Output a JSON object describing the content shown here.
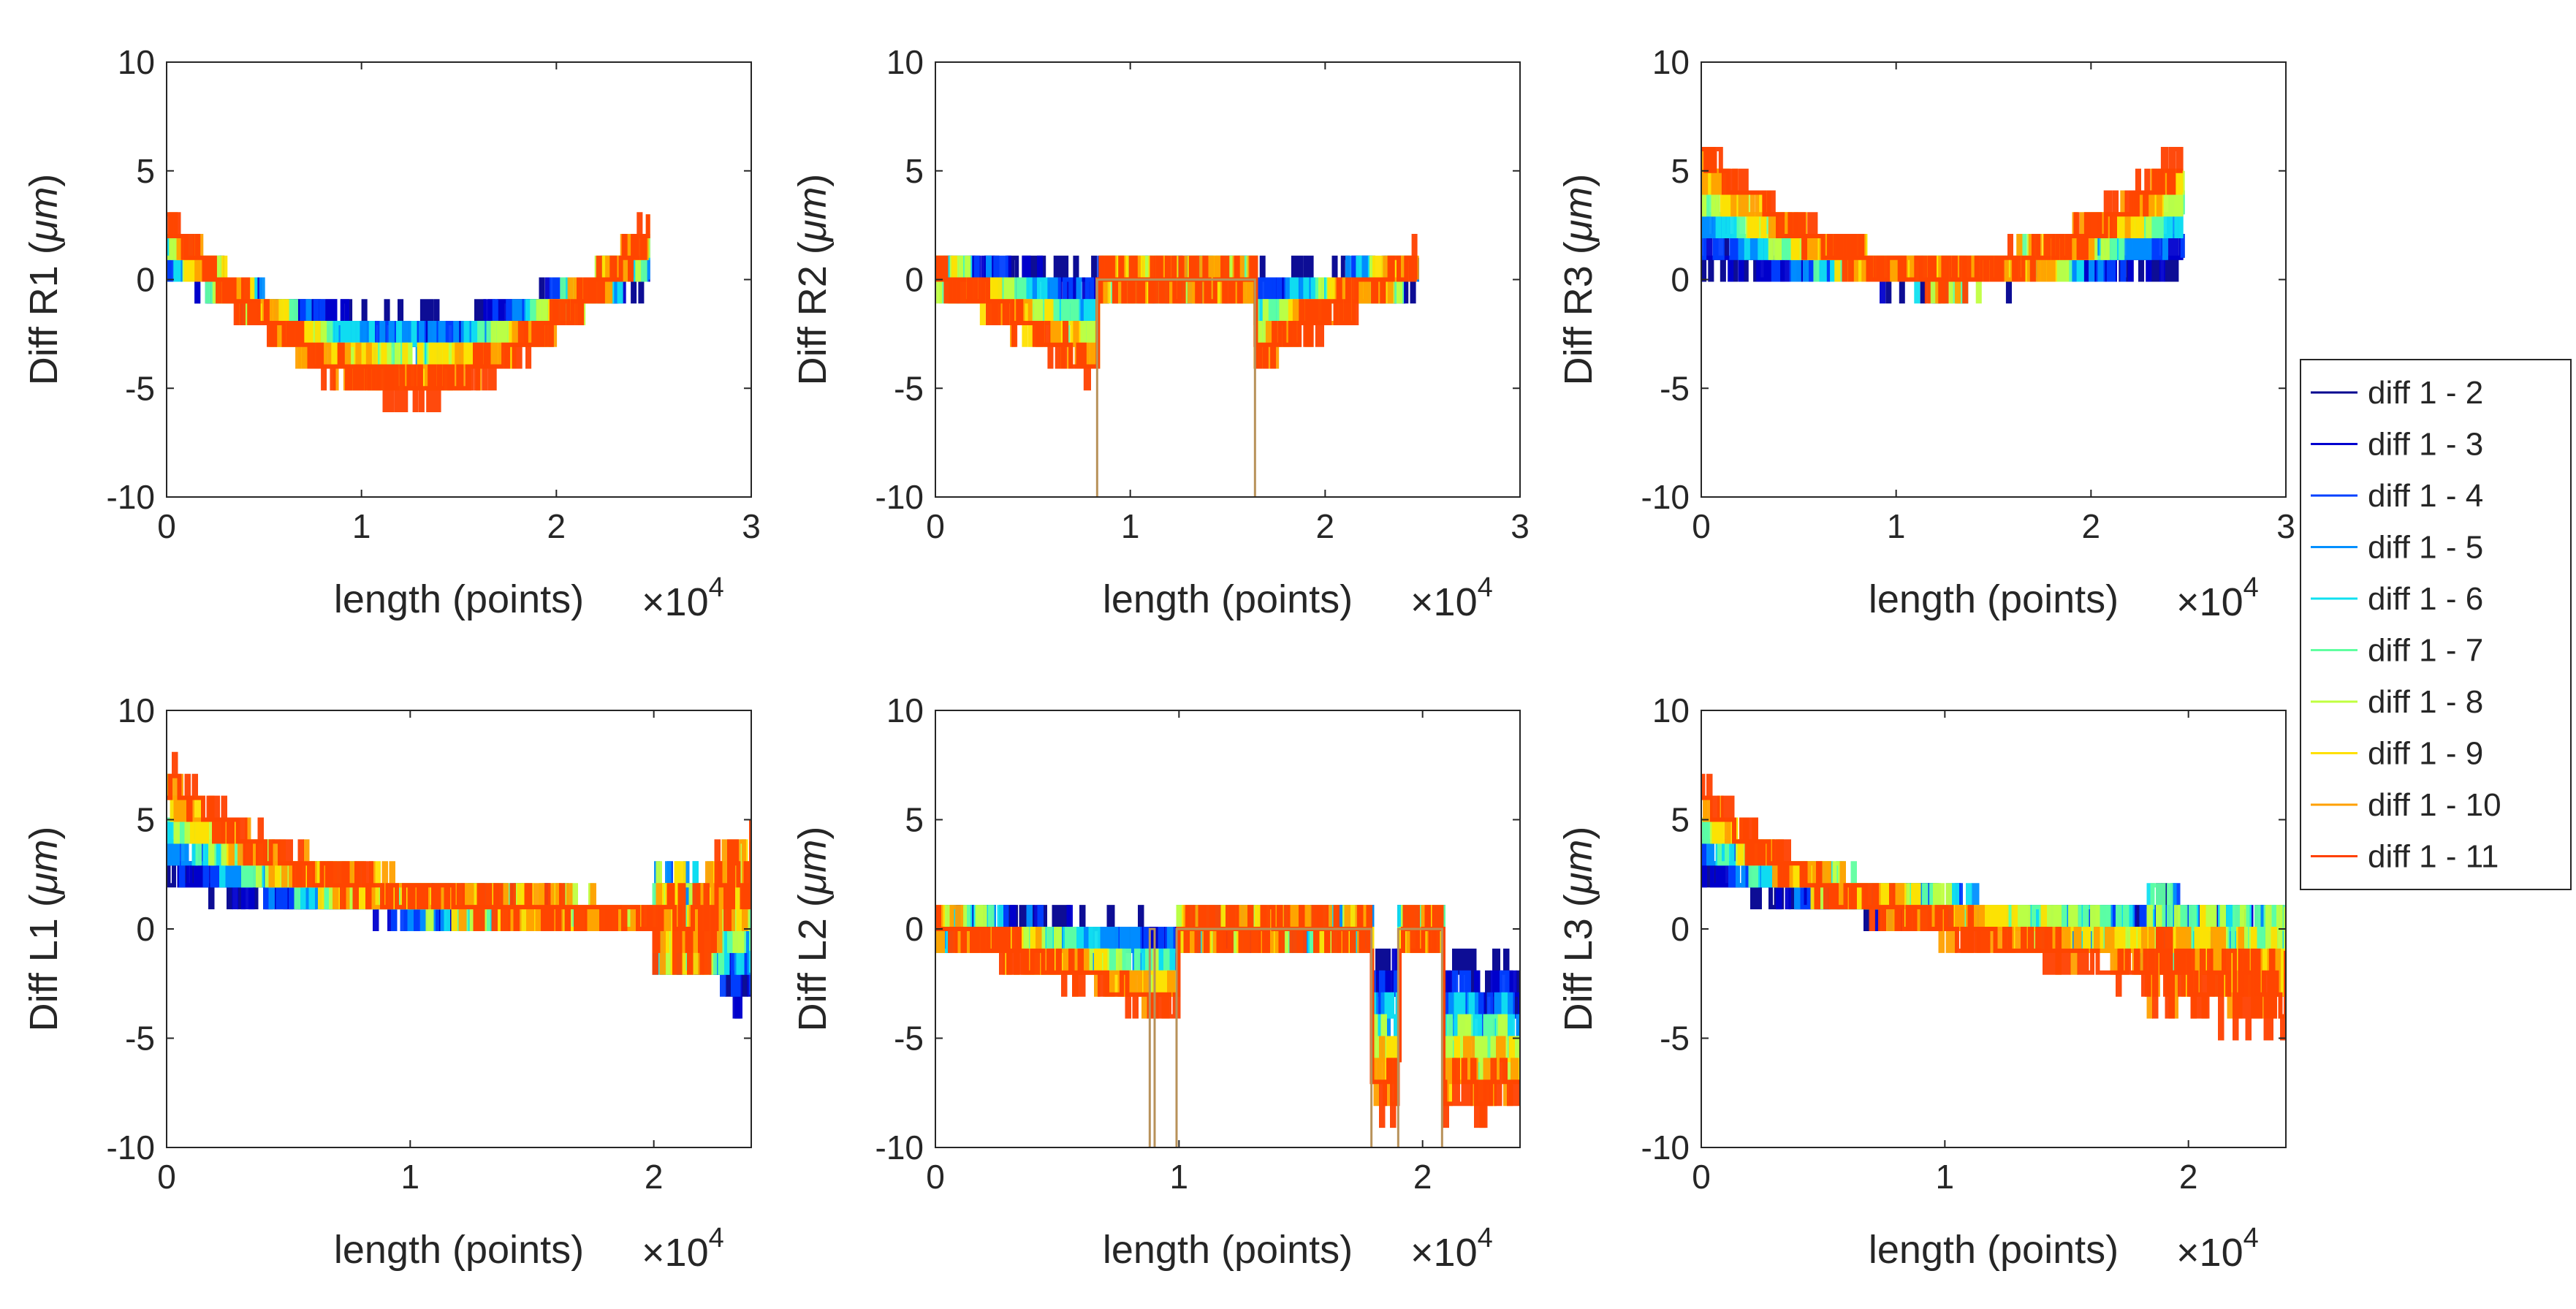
{
  "chart_data": [
    {
      "type": "line",
      "profile": "r1",
      "id": "R1",
      "ylabel": "Diff R1 (μm)",
      "ylabel_main": "Diff R1 (",
      "ylabel_unit": "μm",
      "ylabel_close": ")",
      "xlabel": "length (points)",
      "x_multiplier": "×10",
      "x_multiplier_exp": "4",
      "xlim": [
        0,
        3
      ],
      "ylim": [
        -10,
        10
      ],
      "data_extent": 2.47,
      "xticks": [
        "0",
        "1",
        "2",
        "3"
      ],
      "yticks": [
        "-10",
        "-5",
        "0",
        "5",
        "10"
      ]
    },
    {
      "type": "line",
      "profile": "r2",
      "id": "R2",
      "ylabel": "Diff R2 (μm)",
      "ylabel_main": "Diff R2 (",
      "ylabel_unit": "μm",
      "ylabel_close": ")",
      "xlabel": "length (points)",
      "x_multiplier": "×10",
      "x_multiplier_exp": "4",
      "xlim": [
        0,
        3
      ],
      "ylim": [
        -10,
        10
      ],
      "data_extent": 2.47,
      "xticks": [
        "0",
        "1",
        "2",
        "3"
      ],
      "yticks": [
        "-10",
        "-5",
        "0",
        "5",
        "10"
      ]
    },
    {
      "type": "line",
      "profile": "r3",
      "id": "R3",
      "ylabel": "Diff R3 (μm)",
      "ylabel_main": "Diff R3 (",
      "ylabel_unit": "μm",
      "ylabel_close": ")",
      "xlabel": "length (points)",
      "x_multiplier": "×10",
      "x_multiplier_exp": "4",
      "xlim": [
        0,
        3
      ],
      "ylim": [
        -10,
        10
      ],
      "data_extent": 2.47,
      "xticks": [
        "0",
        "1",
        "2",
        "3"
      ],
      "yticks": [
        "-10",
        "-5",
        "0",
        "5",
        "10"
      ]
    },
    {
      "type": "line",
      "profile": "l1",
      "id": "L1",
      "ylabel": "Diff L1 (μm)",
      "ylabel_main": "Diff L1 (",
      "ylabel_unit": "μm",
      "ylabel_close": ")",
      "xlabel": "length (points)",
      "x_multiplier": "×10",
      "x_multiplier_exp": "4",
      "xlim": [
        0,
        2.4
      ],
      "ylim": [
        -10,
        10
      ],
      "data_extent": 2.4,
      "xticks": [
        "0",
        "1",
        "2"
      ],
      "yticks": [
        "-10",
        "-5",
        "0",
        "5",
        "10"
      ]
    },
    {
      "type": "line",
      "profile": "l2",
      "id": "L2",
      "ylabel": "Diff L2 (μm)",
      "ylabel_main": "Diff L2 (",
      "ylabel_unit": "μm",
      "ylabel_close": ")",
      "xlabel": "length (points)",
      "x_multiplier": "×10",
      "x_multiplier_exp": "4",
      "xlim": [
        0,
        2.4
      ],
      "ylim": [
        -10,
        10
      ],
      "data_extent": 2.4,
      "xticks": [
        "0",
        "1",
        "2"
      ],
      "yticks": [
        "-10",
        "-5",
        "0",
        "5",
        "10"
      ]
    },
    {
      "type": "line",
      "profile": "l3",
      "id": "L3",
      "ylabel": "Diff L3 (μm)",
      "ylabel_main": "Diff L3 (",
      "ylabel_unit": "μm",
      "ylabel_close": ")",
      "xlabel": "length (points)",
      "x_multiplier": "×10",
      "x_multiplier_exp": "4",
      "xlim": [
        0,
        2.4
      ],
      "ylim": [
        -10,
        10
      ],
      "data_extent": 2.4,
      "xticks": [
        "0",
        "1",
        "2"
      ],
      "yticks": [
        "-10",
        "-5",
        "0",
        "5",
        "10"
      ]
    }
  ],
  "legend": {
    "placement": "right",
    "entries": [
      {
        "name": "diff 1 - 2",
        "color": "#00008f"
      },
      {
        "name": "diff 1 - 3",
        "color": "#0000cf"
      },
      {
        "name": "diff 1 - 4",
        "color": "#0040ff"
      },
      {
        "name": "diff 1 - 5",
        "color": "#0090ff"
      },
      {
        "name": "diff 1 - 6",
        "color": "#10e0f0"
      },
      {
        "name": "diff 1 - 7",
        "color": "#60ffa0"
      },
      {
        "name": "diff 1 - 8",
        "color": "#c0ff40"
      },
      {
        "name": "diff 1 - 9",
        "color": "#ffe000"
      },
      {
        "name": "diff 1 - 10",
        "color": "#ffa000"
      },
      {
        "name": "diff 1 - 11",
        "color": "#ff4000"
      }
    ]
  }
}
